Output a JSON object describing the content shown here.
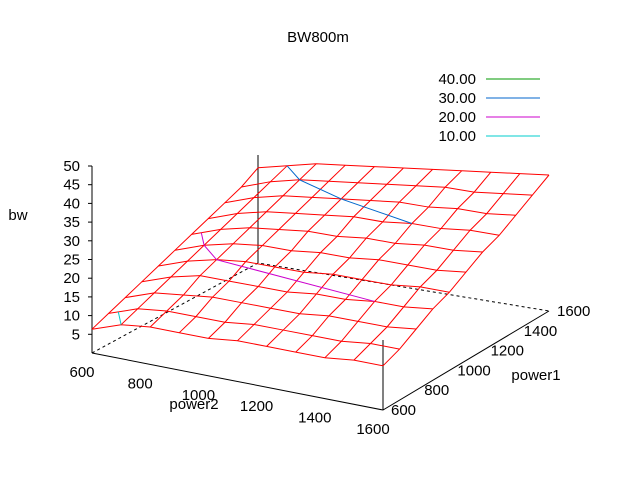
{
  "chart_data": {
    "type": "surface",
    "title": "BW800m",
    "xlabel": "power1",
    "ylabel": "power2",
    "zlabel": "bw",
    "x": [
      600,
      700,
      800,
      900,
      1000,
      1100,
      1200,
      1300,
      1400,
      1500,
      1600
    ],
    "y": [
      600,
      700,
      800,
      900,
      1000,
      1100,
      1200,
      1300,
      1400,
      1500,
      1600
    ],
    "x_ticks": [
      "600",
      "800",
      "1000",
      "1200",
      "1400",
      "1600"
    ],
    "y_ticks": [
      "600",
      "800",
      "1000",
      "1200",
      "1400",
      "1600"
    ],
    "z_ticks": [
      "5",
      "10",
      "15",
      "20",
      "25",
      "30",
      "35",
      "40",
      "45",
      "50"
    ],
    "xlim": [
      600,
      1600
    ],
    "ylim": [
      600,
      1600
    ],
    "zlim": [
      0,
      50
    ],
    "z": [
      [
        7,
        10,
        11,
        11,
        11,
        12,
        12,
        12,
        12,
        13,
        13
      ],
      [
        9,
        12,
        13,
        13,
        13,
        14,
        14,
        14,
        14,
        15,
        15
      ],
      [
        11,
        14,
        15,
        16,
        16,
        16,
        16,
        17,
        17,
        17,
        18
      ],
      [
        13,
        16,
        18,
        18,
        18,
        18,
        19,
        19,
        20,
        20,
        21
      ],
      [
        15,
        18,
        20,
        21,
        21,
        21,
        22,
        22,
        22,
        23,
        23
      ],
      [
        17,
        20,
        22,
        23,
        23,
        24,
        24,
        25,
        25,
        25,
        26
      ],
      [
        19,
        22,
        24,
        25,
        26,
        26,
        27,
        27,
        28,
        28,
        29
      ],
      [
        21,
        24,
        26,
        27,
        28,
        29,
        29,
        30,
        30,
        31,
        31
      ],
      [
        23,
        26,
        28,
        29,
        30,
        31,
        32,
        32,
        33,
        33,
        34
      ],
      [
        25,
        28,
        30,
        31,
        32,
        33,
        34,
        35,
        35,
        36,
        37
      ],
      [
        28,
        30,
        32,
        33,
        34,
        35,
        36,
        37,
        38,
        39,
        40
      ]
    ],
    "contours": [
      {
        "level": 40,
        "label": "40.00",
        "color": "#009900"
      },
      {
        "level": 30,
        "label": "30.00",
        "color": "#0066cc"
      },
      {
        "level": 20,
        "label": "20.00",
        "color": "#cc00cc"
      },
      {
        "level": 10,
        "label": "10.00",
        "color": "#00cccc"
      }
    ],
    "surface_color": "#ff0000",
    "grid": false,
    "legend_position": "top-right"
  }
}
